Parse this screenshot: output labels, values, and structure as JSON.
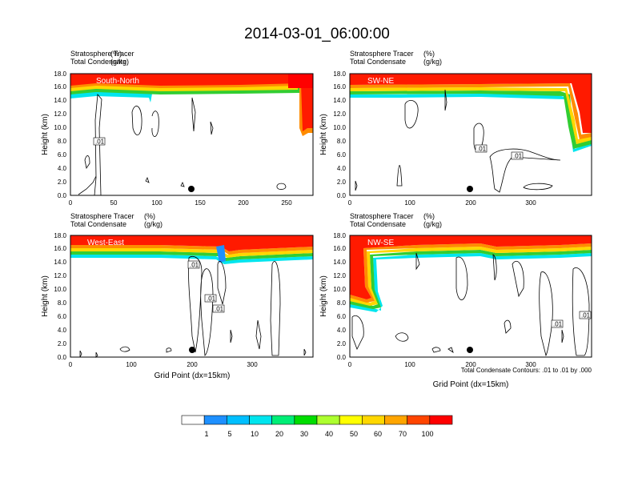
{
  "page": {
    "title": "2014-03-01_06:00:00",
    "footnote": "Total Condensate Contours: .01 to .01 by .000"
  },
  "colorbar": {
    "colors": [
      "#ffffff",
      "#1e90ff",
      "#00bfff",
      "#00e5ee",
      "#00ee76",
      "#00dd00",
      "#adff2f",
      "#ffff00",
      "#ffd700",
      "#ffa500",
      "#ff4500",
      "#ff0000"
    ],
    "labels": [
      "1",
      "5",
      "10",
      "20",
      "30",
      "40",
      "50",
      "60",
      "70",
      "100"
    ]
  },
  "chart_data": [
    {
      "type": "heatmap",
      "panel_label": "South-North",
      "subtitle_left": "Stratosphere Tracer",
      "subtitle_right": "(%)",
      "subtitle2_left": "Total Condensate",
      "subtitle2_right": "(g/kg)",
      "ylabel": "Height (km)",
      "xlabel": "",
      "xlim": [
        0,
        280
      ],
      "ylim": [
        0,
        18
      ],
      "xticks": [
        "0",
        "50",
        "100",
        "150",
        "200",
        "250"
      ],
      "yticks": [
        "0.0",
        "2.0",
        "4.0",
        "6.0",
        "8.0",
        "10.0",
        "12.0",
        "14.0",
        "16.0",
        "18.0"
      ],
      "tracer_base_km": 15.3,
      "marker": {
        "x": 140,
        "y": 0.9
      },
      "contour_labels": [
        ".01"
      ]
    },
    {
      "type": "heatmap",
      "panel_label": "SW-NE",
      "subtitle_left": "Stratosphere Tracer",
      "subtitle_right": "(%)",
      "subtitle2_left": "Total Condensate",
      "subtitle2_right": "(g/kg)",
      "ylabel": "Height (km)",
      "xlabel": "",
      "xlim": [
        0,
        400
      ],
      "ylim": [
        0,
        18
      ],
      "xticks": [
        "0",
        "100",
        "200",
        "300"
      ],
      "yticks": [
        "0.0",
        "2.0",
        "4.0",
        "6.0",
        "8.0",
        "10.0",
        "12.0",
        "14.0",
        "16.0",
        "18.0"
      ],
      "tracer_base_km": 15.3,
      "marker": {
        "x": 198,
        "y": 1.0
      },
      "contour_labels": [
        ".01",
        ".01"
      ]
    },
    {
      "type": "heatmap",
      "panel_label": "West-East",
      "subtitle_left": "Stratosphere Tracer",
      "subtitle_right": "(%)",
      "subtitle2_left": "Total Condensate",
      "subtitle2_right": "(g/kg)",
      "ylabel": "Height (km)",
      "xlabel": "Grid Point (dx=15km)",
      "xlim": [
        0,
        400
      ],
      "ylim": [
        0,
        18
      ],
      "xticks": [
        "0",
        "100",
        "200",
        "300"
      ],
      "yticks": [
        "0.0",
        "2.0",
        "4.0",
        "6.0",
        "8.0",
        "10.0",
        "12.0",
        "14.0",
        "16.0",
        "18.0"
      ],
      "tracer_base_km": 15.3,
      "marker": {
        "x": 199,
        "y": 1.0
      },
      "contour_labels": [
        ".01",
        ".01",
        ".01"
      ]
    },
    {
      "type": "heatmap",
      "panel_label": "NW-SE",
      "subtitle_left": "Stratosphere Tracer",
      "subtitle_right": "(%)",
      "subtitle2_left": "Total Condensate",
      "subtitle2_right": "(g/kg)",
      "ylabel": "Height (km)",
      "xlabel": "Grid Point (dx=15km)",
      "xlim": [
        0,
        400
      ],
      "ylim": [
        0,
        18
      ],
      "xticks": [
        "0",
        "100",
        "200",
        "300"
      ],
      "yticks": [
        "0.0",
        "2.0",
        "4.0",
        "6.0",
        "8.0",
        "10.0",
        "12.0",
        "14.0",
        "16.0",
        "18.0"
      ],
      "tracer_base_km": 15.3,
      "marker": {
        "x": 200,
        "y": 1.0
      },
      "contour_labels": [
        ".01",
        ".01"
      ]
    }
  ]
}
